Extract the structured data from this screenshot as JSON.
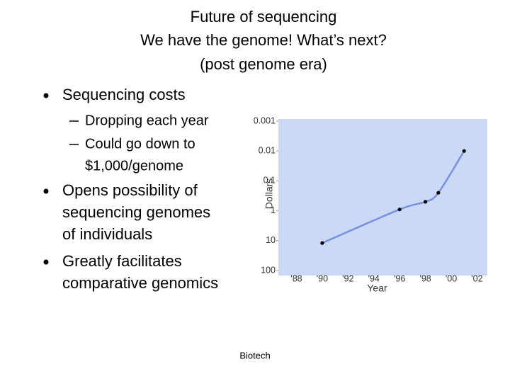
{
  "title": [
    "Future of sequencing",
    "We have the genome! What’s next?",
    "(post genome era)"
  ],
  "bullets": [
    {
      "text": [
        "Sequencing costs"
      ],
      "sub": [
        [
          "Dropping each year"
        ],
        [
          "Could go down to",
          "$1,000/genome"
        ]
      ]
    },
    {
      "text": [
        "Opens possibility of",
        "sequencing genomes",
        "of individuals"
      ]
    },
    {
      "text": [
        "Greatly facilitates",
        "comparative genomics"
      ]
    }
  ],
  "footer": "Biotech",
  "chart_data": {
    "type": "line",
    "xlabel": "Year",
    "ylabel": "Dollars",
    "yscale": "log",
    "x": [
      1990,
      1996,
      1998,
      1999,
      2001
    ],
    "series": [
      {
        "color": "#7b8fe0",
        "values": [
          12,
          0.9,
          0.5,
          0.25,
          0.01
        ]
      }
    ],
    "xlim": [
      1986.6,
      2002.8
    ],
    "xticks": [
      {
        "value": 1988,
        "label": "'88"
      },
      {
        "value": 1990,
        "label": "'90"
      },
      {
        "value": 1992,
        "label": "'92"
      },
      {
        "value": 1994,
        "label": "'94"
      },
      {
        "value": 1996,
        "label": "'96"
      },
      {
        "value": 1998,
        "label": "'98"
      },
      {
        "value": 2000,
        "label": "'00"
      },
      {
        "value": 2002,
        "label": "'02"
      }
    ],
    "ylim": [
      100,
      0.001
    ],
    "yticks": [
      0.001,
      0.01,
      0.1,
      1,
      10,
      100
    ],
    "background": "#c9d9f6"
  }
}
